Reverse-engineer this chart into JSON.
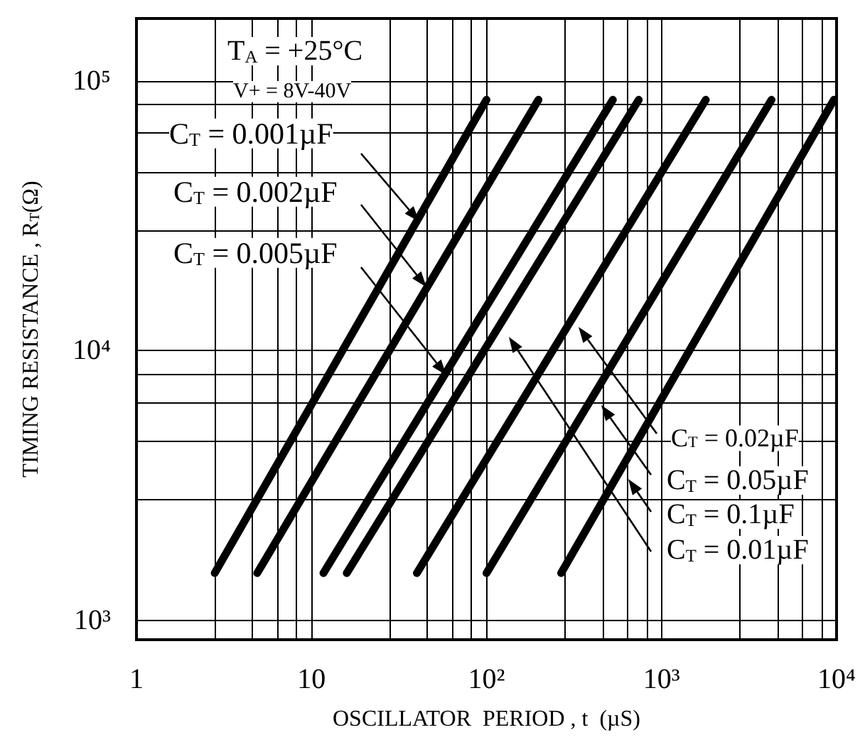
{
  "chart_data": {
    "type": "line",
    "xlabel": "OSCILLATOR  PERIOD , t  (µS)",
    "ylabel": "TIMING RESISTANCE , R$_{T}$(Ω)",
    "log": "xy",
    "grid": true,
    "marker": "none",
    "line_style": "solid",
    "xlim": [
      1,
      10000
    ],
    "xticks": [
      1,
      10,
      {
        "value": 100,
        "label": "10²"
      },
      {
        "value": 1000,
        "label": "10³"
      },
      {
        "value": 10000,
        "label": "10⁴"
      }
    ],
    "ylim": [
      850,
      170000
    ],
    "yticks": [
      {
        "value": 1000,
        "label": "10³"
      },
      {
        "value": 10000,
        "label": "10⁴"
      },
      {
        "value": 100000,
        "label": "10⁵"
      }
    ],
    "series": [
      {
        "color": "#000000",
        "x": [
          2.8,
          100
        ],
        "values": [
          1500,
          85000
        ]
      },
      {
        "color": "#000000",
        "x": [
          4.9,
          198
        ],
        "values": [
          1500,
          85000
        ]
      },
      {
        "color": "#000000",
        "x": [
          11.7,
          527
        ],
        "values": [
          1500,
          85000
        ]
      },
      {
        "color": "#000000",
        "x": [
          15.9,
          741
        ],
        "values": [
          1500,
          85000
        ]
      },
      {
        "color": "#000000",
        "x": [
          40,
          1790
        ],
        "values": [
          1500,
          85000
        ]
      },
      {
        "color": "#000000",
        "x": [
          100,
          4250
        ],
        "values": [
          1500,
          85000
        ]
      },
      {
        "color": "#000000",
        "x": [
          267,
          9660
        ],
        "values": [
          1500,
          85000
        ]
      }
    ],
    "annotations": [
      "T$_{A}$ = +25°C",
      "V+ = 8V-40V",
      "C$_{T}$ = 0.001µF",
      "C$_{T}$ = 0.002µF",
      "C$_{T}$ = 0.005µF",
      "C$_{T}$ = 0.02µF",
      "C$_{T}$ = 0.05µF",
      "C$_{T}$ = 0.1µF",
      "C$_{T}$ = 0.01µF"
    ]
  }
}
